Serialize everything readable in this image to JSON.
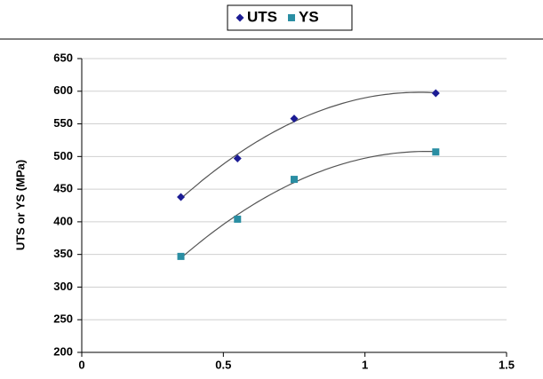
{
  "chart_data": {
    "type": "scatter",
    "y_label": "UTS or YS (MPa)",
    "series": [
      {
        "name": "UTS",
        "color": "#1c1c94",
        "marker": "diamond",
        "x": [
          0.35,
          0.55,
          0.75,
          1.25
        ],
        "values": [
          438,
          497,
          558,
          597
        ]
      },
      {
        "name": "YS",
        "color": "#2a8ea3",
        "marker": "square",
        "x": [
          0.35,
          0.55,
          0.75,
          1.25
        ],
        "values": [
          347,
          404,
          465,
          507
        ]
      }
    ],
    "xlim": [
      0,
      1.5
    ],
    "xticks": [
      0,
      0.5,
      1,
      1.5
    ],
    "ylim": [
      200,
      650
    ],
    "yticks": [
      200,
      250,
      300,
      350,
      400,
      450,
      500,
      550,
      600,
      650
    ],
    "grid": true,
    "legend": "top",
    "trendline": "polynomial"
  }
}
